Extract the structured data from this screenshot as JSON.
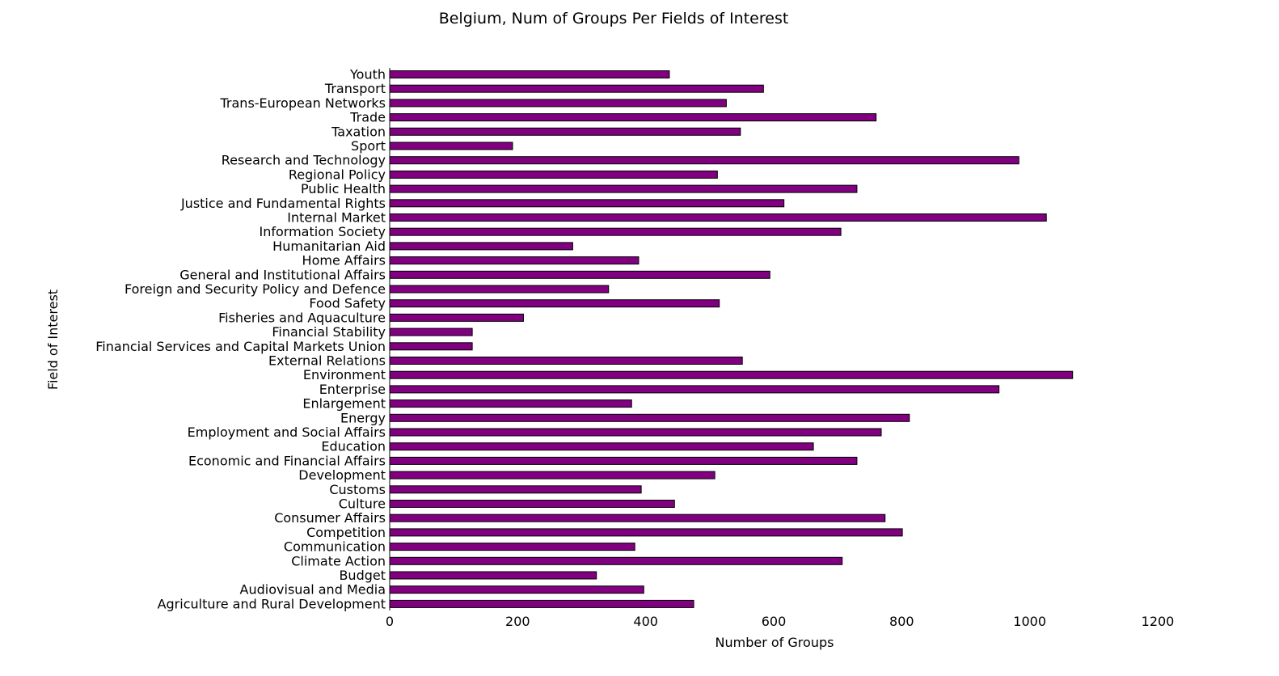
{
  "chart_data": {
    "type": "bar",
    "orientation": "horizontal",
    "title": "Belgium, Num of Groups Per Fields of Interest",
    "xlabel": "Number of Groups",
    "ylabel": "Field of Interest",
    "xlim": [
      0,
      1200
    ],
    "xticks": [
      "0",
      "200",
      "400",
      "600",
      "800",
      "1000",
      "1200"
    ],
    "grid": false,
    "bar_color": "#800080",
    "edge_color": "#000000",
    "categories": [
      "Youth",
      "Transport",
      "Trans-European Networks",
      "Trade",
      "Taxation",
      "Sport",
      "Research and Technology",
      "Regional Policy",
      "Public Health",
      "Justice and Fundamental Rights",
      "Internal Market",
      "Information Society",
      "Humanitarian Aid",
      "Home Affairs",
      "General and Institutional Affairs",
      "Foreign and Security Policy and Defence",
      "Food Safety",
      "Fisheries and Aquaculture",
      "Financial Stability",
      "Financial Services and Capital Markets Union",
      "External Relations",
      "Environment",
      "Enterprise",
      "Enlargement",
      "Energy",
      "Employment and Social Affairs",
      "Education",
      "Economic and Financial Affairs",
      "Development",
      "Customs",
      "Culture",
      "Consumer Affairs",
      "Competition",
      "Communication",
      "Climate Action",
      "Budget",
      "Audiovisual and Media",
      "Agriculture and Rural Development"
    ],
    "values": [
      437,
      584,
      526,
      760,
      548,
      192,
      983,
      512,
      730,
      616,
      1026,
      705,
      286,
      389,
      594,
      342,
      515,
      209,
      129,
      129,
      551,
      1067,
      952,
      378,
      812,
      768,
      662,
      730,
      508,
      393,
      445,
      774,
      801,
      383,
      707,
      323,
      397,
      475
    ]
  }
}
